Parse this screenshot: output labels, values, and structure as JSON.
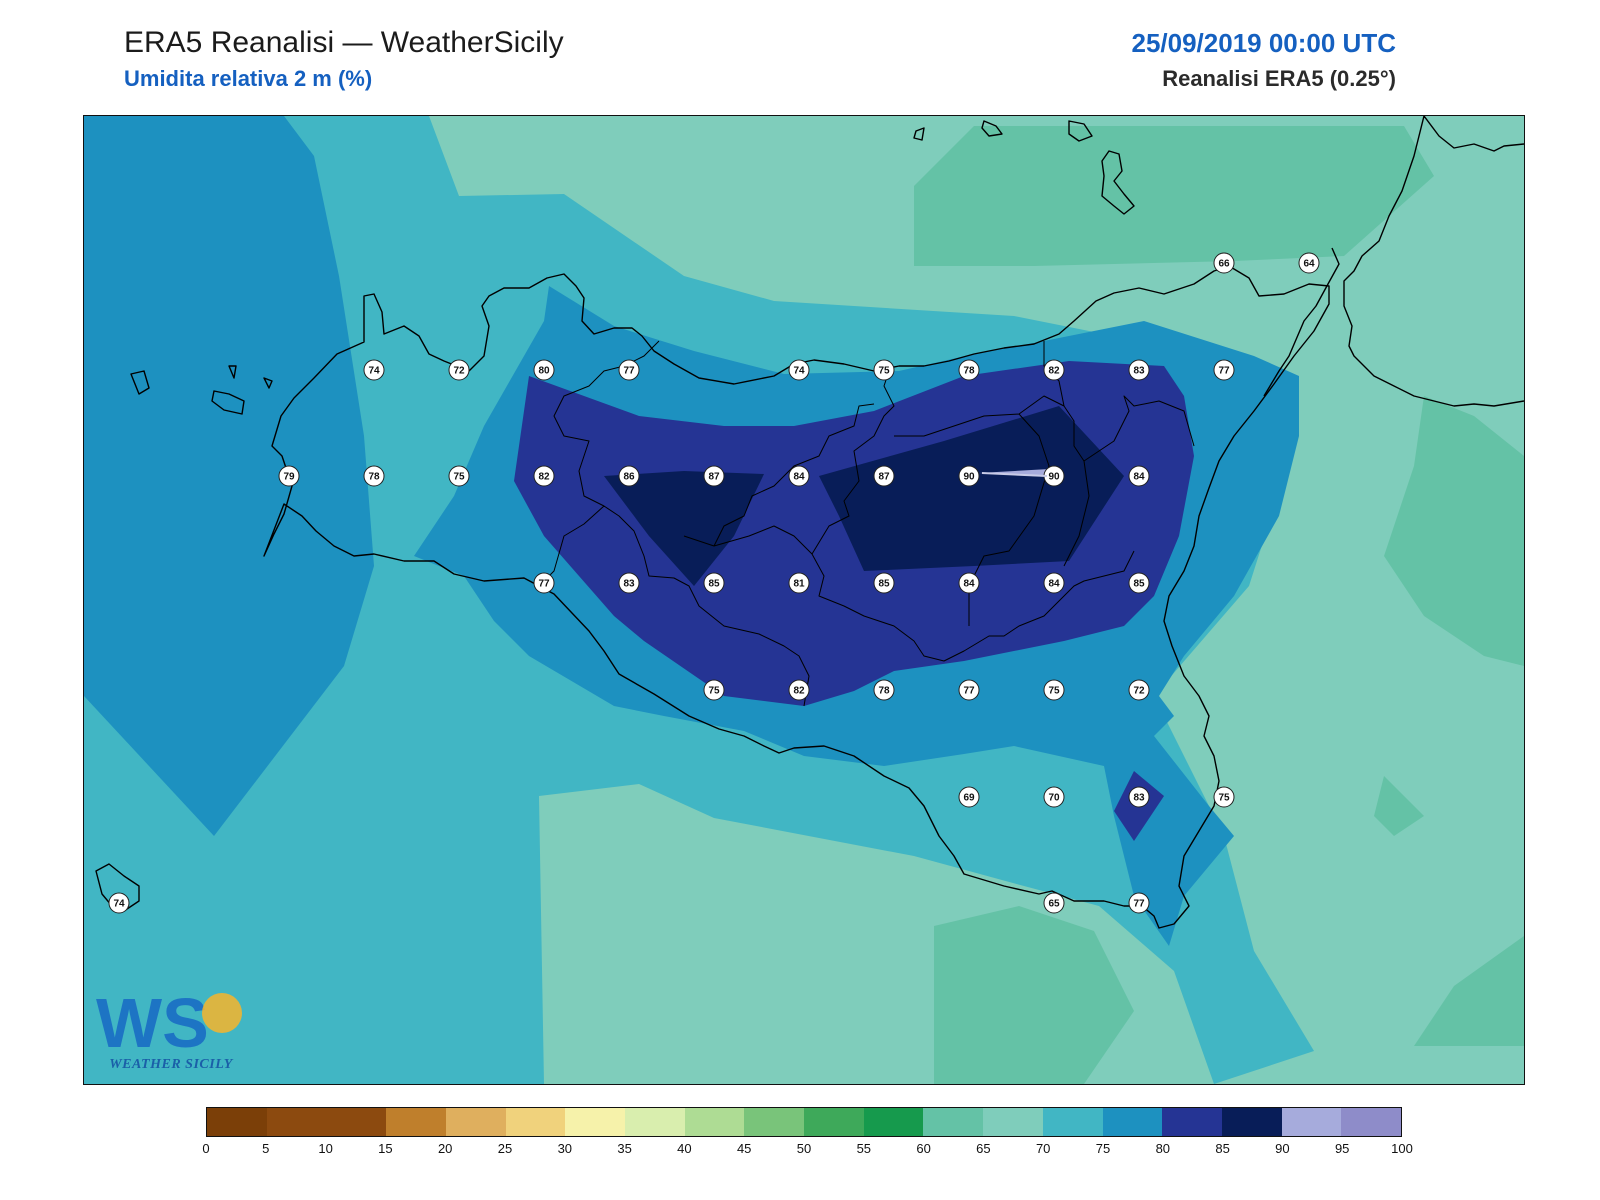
{
  "header": {
    "title": "ERA5 Reanalisi — WeatherSicily",
    "subtitle": "Umidita relativa 2 m (%)",
    "datetime": "25/09/2019 00:00 UTC",
    "source": "Reanalisi ERA5 (0.25°)"
  },
  "colors": {
    "r60_65": "#64c2a6",
    "r65_70": "#7fcdbb",
    "r70_75": "#41b6c4",
    "r75_80": "#1d91c0",
    "r80_85": "#253494",
    "r85_90": "#081d58",
    "r90_95": "#a6abdc"
  },
  "colorbar": {
    "colors": [
      "#7b3f08",
      "#8c4a0f",
      "#8c4a0f",
      "#bf7f2c",
      "#dfaf5e",
      "#f0d27c",
      "#f6f2aa",
      "#d9eeae",
      "#aedc94",
      "#79c47a",
      "#3ea95a",
      "#169a4d",
      "#64c2a6",
      "#7fcdbb",
      "#41b6c4",
      "#1d91c0",
      "#253494",
      "#081d58",
      "#a6abdc",
      "#8e8cc9"
    ],
    "ticks": [
      "0",
      "5",
      "10",
      "15",
      "20",
      "25",
      "30",
      "35",
      "40",
      "45",
      "50",
      "55",
      "60",
      "65",
      "70",
      "75",
      "80",
      "85",
      "90",
      "95",
      "100"
    ]
  },
  "stations": [
    {
      "v": "74"
    },
    {
      "v": "72"
    },
    {
      "v": "80"
    },
    {
      "v": "77"
    },
    {
      "v": "74"
    },
    {
      "v": "75"
    },
    {
      "v": "78"
    },
    {
      "v": "82"
    },
    {
      "v": "83"
    },
    {
      "v": "77"
    },
    {
      "v": "79"
    },
    {
      "v": "78"
    },
    {
      "v": "75"
    },
    {
      "v": "82"
    },
    {
      "v": "86"
    },
    {
      "v": "87"
    },
    {
      "v": "84"
    },
    {
      "v": "87"
    },
    {
      "v": "90"
    },
    {
      "v": "90"
    },
    {
      "v": "84"
    },
    {
      "v": "77"
    },
    {
      "v": "83"
    },
    {
      "v": "85"
    },
    {
      "v": "81"
    },
    {
      "v": "85"
    },
    {
      "v": "84"
    },
    {
      "v": "84"
    },
    {
      "v": "85"
    },
    {
      "v": "75"
    },
    {
      "v": "82"
    },
    {
      "v": "78"
    },
    {
      "v": "77"
    },
    {
      "v": "75"
    },
    {
      "v": "72"
    },
    {
      "v": "69"
    },
    {
      "v": "70"
    },
    {
      "v": "83"
    },
    {
      "v": "75"
    },
    {
      "v": "65"
    },
    {
      "v": "77"
    },
    {
      "v": "66"
    },
    {
      "v": "64"
    },
    {
      "v": "74"
    }
  ],
  "logo": {
    "text": "WEATHER SICILY",
    "letters": "WS"
  }
}
